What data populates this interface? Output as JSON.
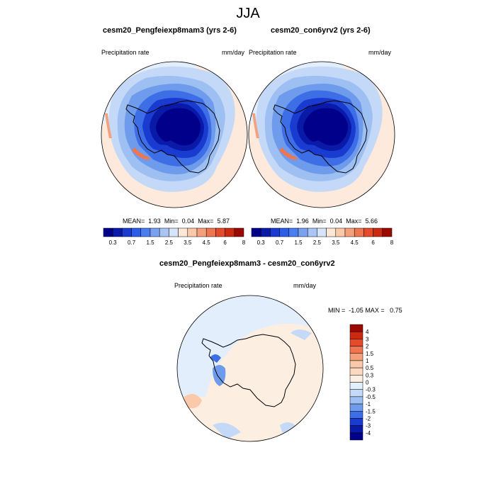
{
  "figure": {
    "title": "JJA"
  },
  "panels": [
    {
      "title": "cesm20_Pengfeiexp8mam3 (yrs 2-6)",
      "left_label": "Precipitation rate",
      "right_label": "mm/day",
      "stats": {
        "mean_label": "MEAN=",
        "mean": "1.93",
        "min_label": "Min=",
        "min": "0.04",
        "max_label": "Max=",
        "max": "5.87"
      }
    },
    {
      "title": "cesm20_con6yrv2 (yrs 2-6)",
      "left_label": "Precipitation rate",
      "right_label": "mm/day",
      "stats": {
        "mean_label": "MEAN=",
        "mean": "1.96",
        "min_label": "Min=",
        "min": "0.04",
        "max_label": "Max=",
        "max": "5.66"
      }
    },
    {
      "title": "cesm20_Pengfeiexp8mam3 - cesm20_con6yrv2",
      "left_label": "Precipitation rate",
      "right_label": "mm/day",
      "stats": {
        "min_label": "MIN =",
        "min": "-1.05",
        "max_label": "MAX =",
        "max": "0.75"
      }
    }
  ],
  "precip_colorbar": {
    "tick_labels": [
      "0.3",
      "0.7",
      "1.5",
      "2.5",
      "3.5",
      "4.5",
      "6",
      "8"
    ],
    "colors": [
      "#00008b",
      "#0a1aa8",
      "#1a3bd0",
      "#2a5de8",
      "#4a7ef0",
      "#7aa0f0",
      "#a9c4f5",
      "#d6e5fb",
      "#fde8d8",
      "#f9c9a9",
      "#f5a07c",
      "#ee7550",
      "#e54a2a",
      "#cc2a10",
      "#9b0a00"
    ]
  },
  "diff_colorbar": {
    "tick_labels": [
      "4",
      "3",
      "2",
      "1.5",
      "1",
      "0.5",
      "0.3",
      "0",
      "-0.3",
      "-0.5",
      "-1",
      "-1.5",
      "-2",
      "-3",
      "-4"
    ],
    "colors": [
      "#9b0a00",
      "#cc2a10",
      "#e54a2a",
      "#ee7550",
      "#f5a07c",
      "#f9c9a9",
      "#fbd8c0",
      "#fdeee2",
      "#e2eefc",
      "#c3d9f7",
      "#9ebff2",
      "#6e9bec",
      "#3e6ee6",
      "#1a3bd0",
      "#0a1aa8",
      "#00008b"
    ]
  }
}
